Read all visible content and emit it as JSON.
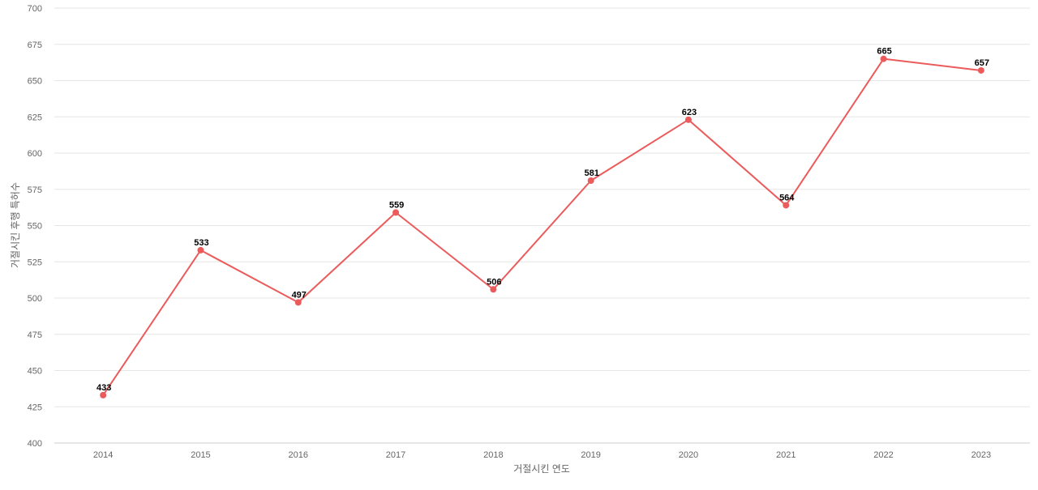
{
  "chart_data": {
    "type": "line",
    "title": "",
    "xlabel": "거절시킨 연도",
    "ylabel": "거절시킨 후행 특허수",
    "categories": [
      "2014",
      "2015",
      "2016",
      "2017",
      "2018",
      "2019",
      "2020",
      "2021",
      "2022",
      "2023"
    ],
    "series": [
      {
        "values": [
          433,
          533,
          497,
          559,
          506,
          581,
          623,
          564,
          665,
          657
        ],
        "color": "#eb5b5b"
      }
    ],
    "ylim": [
      400,
      700
    ],
    "yticks": [
      400,
      425,
      450,
      475,
      500,
      525,
      550,
      575,
      600,
      625,
      650,
      675,
      700
    ],
    "grid": true,
    "legend": "none",
    "data_labels": true
  }
}
